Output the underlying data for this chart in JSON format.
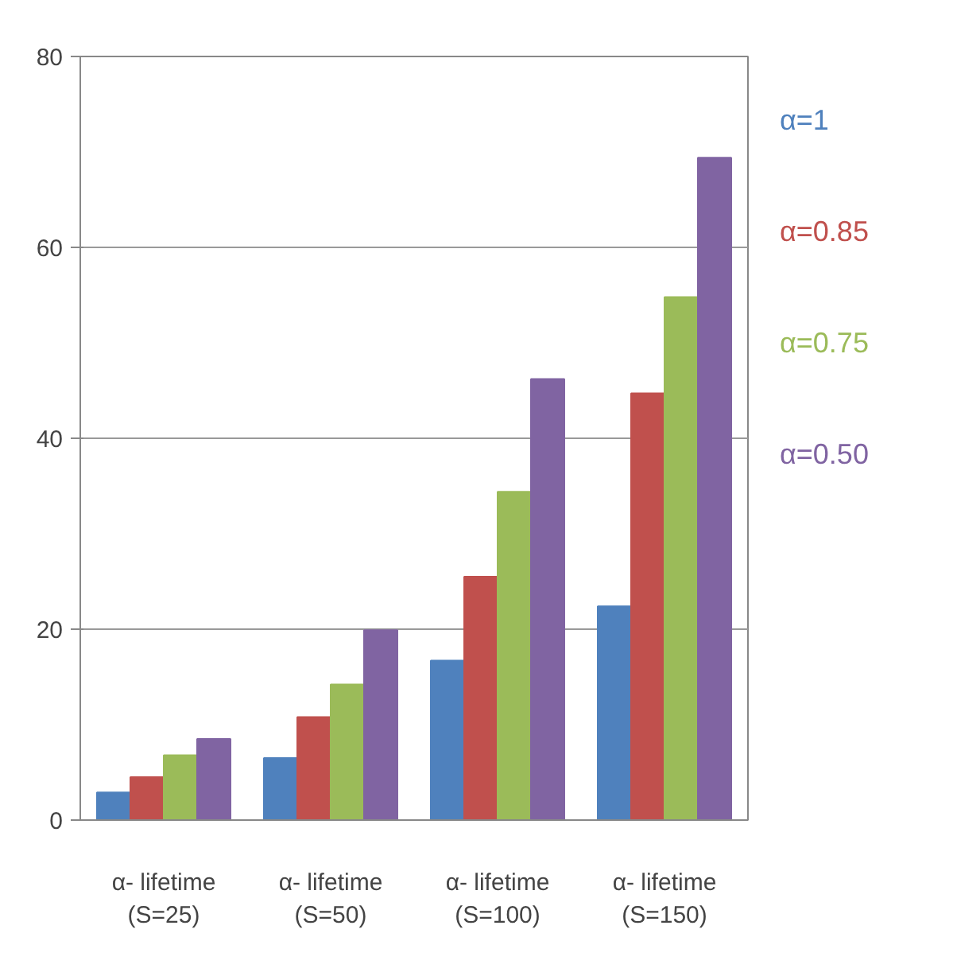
{
  "chart_data": {
    "type": "bar",
    "categories": [
      "α- lifetime\n(S=25)",
      "α- lifetime\n(S=50)",
      "α- lifetime\n(S=100)",
      "α- lifetime\n(S=150)"
    ],
    "series": [
      {
        "name": "α=1",
        "color": "#4f81bd",
        "values": [
          2.9,
          6.5,
          16.7,
          22.4
        ]
      },
      {
        "name": "α=0.85",
        "color": "#c0504d",
        "values": [
          4.5,
          10.8,
          25.5,
          44.7
        ]
      },
      {
        "name": "α=0.75",
        "color": "#9bbb59",
        "values": [
          6.8,
          14.2,
          34.4,
          54.8
        ]
      },
      {
        "name": "α=0.50",
        "color": "#8064a2",
        "values": [
          8.5,
          19.9,
          46.2,
          69.4
        ]
      }
    ],
    "ylim": [
      0,
      80
    ],
    "yticks": [
      0,
      20,
      40,
      60,
      80
    ],
    "grid": "y"
  }
}
